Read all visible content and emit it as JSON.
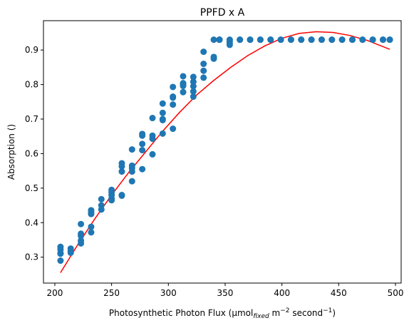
{
  "chart_data": {
    "type": "scatter",
    "title": "PPFD x A",
    "xlabel": {
      "prefix": "Photosynthetic Photon Flux (μmol",
      "sub": "fixed",
      "mid1": " m",
      "sup1": "−2",
      "mid2": " second",
      "sup2": "−1",
      "suffix": ")"
    },
    "ylabel": "Absorption ()",
    "xlim": [
      190,
      505
    ],
    "ylim": [
      0.225,
      0.985
    ],
    "xticks": [
      200,
      250,
      300,
      350,
      400,
      450,
      500
    ],
    "yticks": [
      0.3,
      0.4,
      0.5,
      0.6,
      0.7,
      0.8,
      0.9
    ],
    "grid": false,
    "colors": {
      "points": "#1f77b4",
      "fit": "#ff0000"
    },
    "series": [
      {
        "kind": "scatter",
        "x": [
          205,
          205,
          205,
          205,
          205,
          214,
          214,
          214,
          223,
          223,
          223,
          223,
          223,
          232,
          232,
          232,
          232,
          232,
          241,
          241,
          241,
          250,
          250,
          250,
          250,
          250,
          259,
          259,
          259,
          259,
          259,
          268,
          268,
          268,
          268,
          268,
          277,
          277,
          277,
          277,
          277,
          286,
          286,
          286,
          286,
          295,
          295,
          295,
          295,
          295,
          304,
          304,
          304,
          304,
          304,
          313,
          313,
          313,
          313,
          313,
          322,
          322,
          322,
          322,
          322,
          331,
          331,
          331,
          331,
          340,
          340,
          340,
          345,
          345,
          345,
          354,
          354,
          354,
          354,
          363,
          363,
          372,
          372,
          381,
          381,
          390,
          390,
          399,
          399,
          408,
          408,
          417,
          417,
          426,
          426,
          435,
          435,
          444,
          444,
          453,
          453,
          462,
          462,
          471,
          471,
          480,
          480,
          489,
          489,
          495,
          495
        ],
        "y": [
          0.33,
          0.322,
          0.312,
          0.31,
          0.29,
          0.325,
          0.318,
          0.313,
          0.396,
          0.368,
          0.362,
          0.348,
          0.34,
          0.436,
          0.43,
          0.425,
          0.388,
          0.372,
          0.468,
          0.45,
          0.438,
          0.495,
          0.488,
          0.48,
          0.47,
          0.465,
          0.572,
          0.563,
          0.548,
          0.48,
          0.478,
          0.612,
          0.565,
          0.558,
          0.548,
          0.52,
          0.657,
          0.652,
          0.628,
          0.61,
          0.555,
          0.703,
          0.652,
          0.643,
          0.598,
          0.745,
          0.718,
          0.7,
          0.697,
          0.658,
          0.793,
          0.765,
          0.762,
          0.742,
          0.672,
          0.824,
          0.804,
          0.8,
          0.796,
          0.778,
          0.822,
          0.808,
          0.795,
          0.78,
          0.765,
          0.895,
          0.86,
          0.84,
          0.82,
          0.93,
          0.88,
          0.875,
          0.93,
          0.93,
          0.93,
          0.93,
          0.925,
          0.92,
          0.915,
          0.93,
          0.93,
          0.93,
          0.93,
          0.93,
          0.93,
          0.93,
          0.93,
          0.93,
          0.93,
          0.93,
          0.93,
          0.93,
          0.93,
          0.93,
          0.93,
          0.93,
          0.93,
          0.93,
          0.93,
          0.93,
          0.93,
          0.93,
          0.93,
          0.93,
          0.93,
          0.93,
          0.93,
          0.93,
          0.93,
          0.93,
          0.93
        ]
      },
      {
        "kind": "line",
        "x": [
          205,
          220,
          235,
          250,
          265,
          280,
          295,
          310,
          325,
          340,
          355,
          370,
          385,
          400,
          415,
          430,
          445,
          460,
          475,
          495
        ],
        "y": [
          0.255,
          0.335,
          0.41,
          0.48,
          0.545,
          0.605,
          0.665,
          0.72,
          0.77,
          0.812,
          0.85,
          0.884,
          0.912,
          0.934,
          0.948,
          0.953,
          0.951,
          0.942,
          0.928,
          0.902
        ]
      }
    ]
  }
}
